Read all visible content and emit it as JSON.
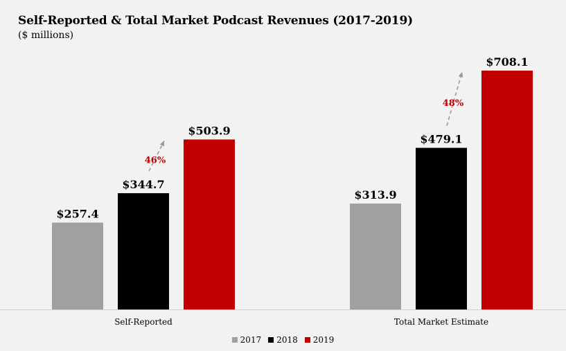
{
  "chart_data": {
    "type": "bar",
    "title": "Self-Reported & Total Market Podcast Revenues (2017-2019)",
    "subtitle": "($ millions)",
    "categories": [
      "Self-Reported",
      "Total Market Estimate"
    ],
    "series": [
      {
        "name": "2017",
        "color": "#a0a0a0",
        "values": [
          257.4,
          313.9
        ],
        "labels": [
          "$257.4",
          "$313.9"
        ]
      },
      {
        "name": "2018",
        "color": "#000000",
        "values": [
          344.7,
          479.1
        ],
        "labels": [
          "$344.7",
          "$479.1"
        ]
      },
      {
        "name": "2019",
        "color": "#c00000",
        "values": [
          503.9,
          708.1
        ],
        "labels": [
          "$503.9",
          "$708.1"
        ]
      }
    ],
    "growth_annotations": [
      "46%",
      "48%"
    ],
    "ylim": [
      0,
      780
    ],
    "grid": false,
    "legend_position": "bottom-center"
  }
}
